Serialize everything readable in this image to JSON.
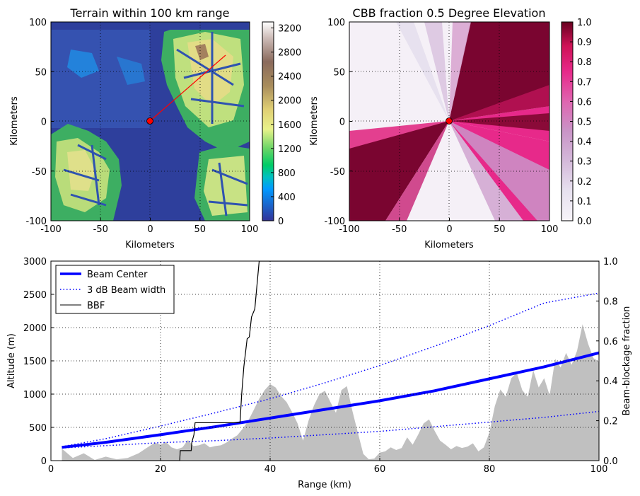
{
  "chart_data": [
    {
      "type": "heatmap",
      "title": "Terrain within 100 km range",
      "xlabel": "Kilometers",
      "ylabel": "Kilometers",
      "xlim": [
        -100,
        100
      ],
      "ylim": [
        -100,
        100
      ],
      "xticks": [
        "-100",
        "-50",
        "0",
        "50",
        "100"
      ],
      "yticks": [
        "-100",
        "-50",
        "0",
        "50",
        "100"
      ],
      "grid": true,
      "colorbar": {
        "min": 0,
        "max": 3300,
        "ticks": [
          "0",
          "400",
          "800",
          "1200",
          "1600",
          "2000",
          "2400",
          "2800",
          "3200"
        ],
        "colormap": "terrain"
      },
      "radar_site": {
        "x": 0,
        "y": 0,
        "color": "#ff0000"
      },
      "profile_line": {
        "x0": 0,
        "y0": 0,
        "x1": 76,
        "y1": 66,
        "color": "#ff0000"
      }
    },
    {
      "type": "heatmap",
      "title": "CBB fraction 0.5 Degree Elevation",
      "xlabel": "Kilometers",
      "ylabel": "Kilometers",
      "xlim": [
        -100,
        100
      ],
      "ylim": [
        -100,
        100
      ],
      "xticks": [
        "-100",
        "-50",
        "0",
        "50",
        "100"
      ],
      "yticks": [
        "-100",
        "-50",
        "0",
        "50",
        "100"
      ],
      "grid": true,
      "colorbar": {
        "min": 0,
        "max": 1,
        "ticks": [
          "0.0",
          "0.1",
          "0.2",
          "0.3",
          "0.4",
          "0.5",
          "0.6",
          "0.7",
          "0.8",
          "0.9",
          "1.0"
        ],
        "colormap": "PuRd"
      },
      "radar_site": {
        "x": 0,
        "y": 0,
        "color": "#ff0000"
      }
    },
    {
      "type": "line",
      "xlabel": "Range (km)",
      "ylabel": "Altitude (m)",
      "y2label": "Beam-blockage fraction",
      "xlim": [
        0,
        100
      ],
      "ylim": [
        0,
        3000
      ],
      "y2lim": [
        0,
        1
      ],
      "xticks": [
        "0",
        "20",
        "40",
        "60",
        "80",
        "100"
      ],
      "yticks": [
        "0",
        "500",
        "1000",
        "1500",
        "2000",
        "2500",
        "3000"
      ],
      "y2ticks": [
        "0.0",
        "0.2",
        "0.4",
        "0.6",
        "0.8",
        "1.0"
      ],
      "grid": true,
      "legend_position": "top-left",
      "series": [
        {
          "name": "Beam Center",
          "color": "#0000ff",
          "style": "solid-thick",
          "x": [
            2,
            10,
            20,
            30,
            40,
            50,
            60,
            70,
            80,
            90,
            100
          ],
          "values": [
            200,
            275,
            390,
            510,
            640,
            770,
            900,
            1050,
            1230,
            1410,
            1620
          ]
        },
        {
          "name": "3 dB Beam width",
          "color": "#0000ff",
          "style": "dotted",
          "x": [
            2,
            10,
            20,
            30,
            40,
            50,
            60,
            70,
            80,
            90,
            100
          ],
          "values": [
            210,
            330,
            520,
            720,
            930,
            1170,
            1430,
            1720,
            2030,
            2370,
            2520
          ]
        },
        {
          "name": "",
          "color": "#0000ff",
          "style": "dotted",
          "legend": false,
          "x": [
            2,
            10,
            20,
            30,
            40,
            50,
            60,
            70,
            80,
            90,
            100
          ],
          "values": [
            190,
            225,
            270,
            300,
            340,
            390,
            440,
            510,
            580,
            650,
            740
          ]
        },
        {
          "name": "BBF",
          "color": "#000000",
          "style": "solid-thin",
          "axis": "right",
          "x": [
            2,
            23.5,
            23.6,
            25.6,
            25.7,
            26.1,
            26.3,
            34.5,
            34.8,
            35.2,
            35.8,
            36.2,
            36.6,
            37.2,
            37.6,
            38.0,
            100
          ],
          "values": [
            0.0,
            0.0,
            0.05,
            0.05,
            0.09,
            0.13,
            0.19,
            0.19,
            0.33,
            0.47,
            0.61,
            0.62,
            0.72,
            0.76,
            0.88,
            1.0,
            1.0
          ]
        }
      ],
      "terrain_profile": {
        "name": "terrain",
        "color": "#c0c0c0",
        "x": [
          2,
          4,
          6,
          8,
          10,
          12,
          14,
          16,
          18,
          19,
          20,
          21,
          22,
          23,
          24,
          25,
          26,
          27,
          28,
          29,
          30,
          31,
          32,
          33,
          34,
          35,
          36,
          37,
          38,
          39,
          40,
          41,
          42,
          43,
          44,
          45,
          46,
          47,
          48,
          49,
          50,
          51,
          52,
          53,
          54,
          55,
          56,
          57,
          58,
          59,
          60,
          61,
          62,
          63,
          64,
          65,
          66,
          67,
          68,
          69,
          70,
          71,
          72,
          73,
          74,
          75,
          76,
          77,
          78,
          79,
          80,
          81,
          82,
          83,
          84,
          85,
          86,
          87,
          88,
          89,
          90,
          91,
          92,
          93,
          94,
          95,
          96,
          97,
          98,
          99,
          100
        ],
        "values": [
          180,
          40,
          110,
          10,
          60,
          20,
          40,
          110,
          220,
          270,
          240,
          280,
          200,
          170,
          200,
          310,
          220,
          230,
          260,
          200,
          220,
          230,
          270,
          330,
          380,
          480,
          600,
          760,
          930,
          1060,
          1150,
          1100,
          970,
          880,
          730,
          560,
          300,
          600,
          830,
          1000,
          1050,
          880,
          720,
          1060,
          1120,
          750,
          420,
          100,
          20,
          30,
          120,
          140,
          200,
          160,
          190,
          350,
          240,
          390,
          560,
          620,
          450,
          300,
          240,
          170,
          220,
          190,
          210,
          260,
          140,
          200,
          420,
          820,
          1070,
          960,
          1240,
          1320,
          1060,
          960,
          1360,
          1100,
          1240,
          980,
          1530,
          1400,
          1620,
          1440,
          1650,
          2050,
          1760,
          1540,
          1490
        ]
      }
    }
  ]
}
